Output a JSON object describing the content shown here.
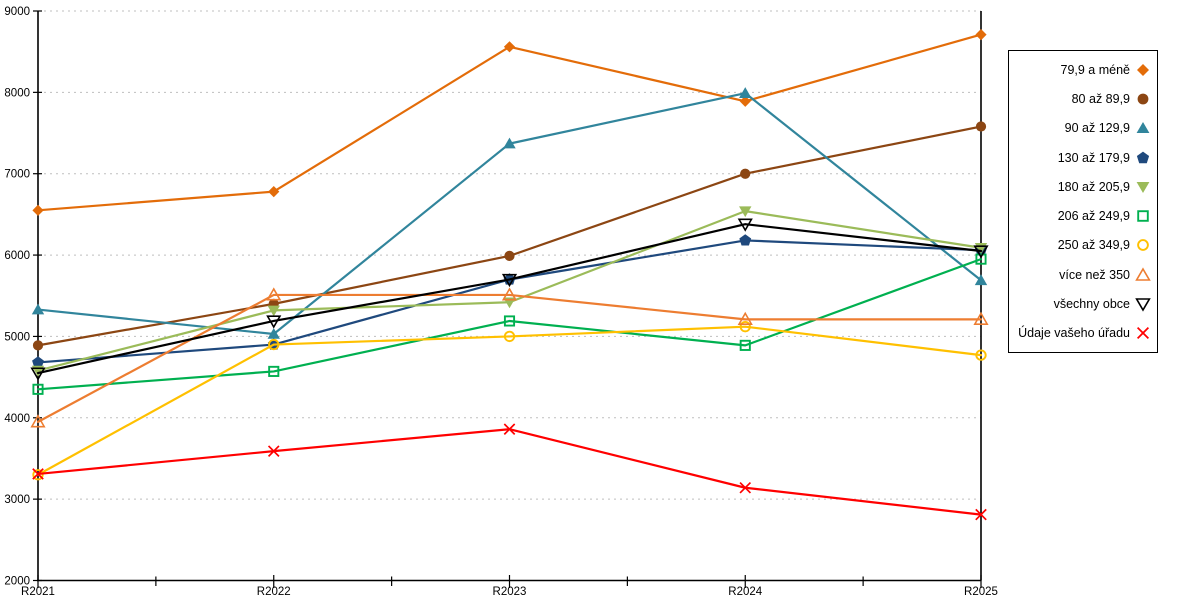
{
  "chart_data": {
    "type": "line",
    "title": "",
    "xlabel": "",
    "ylabel": "",
    "x_labels": [
      "R2021",
      "R2022",
      "R2023",
      "R2024",
      "R2025"
    ],
    "y_tick_labels": [
      "2000",
      "3000",
      "4000",
      "5000",
      "6000",
      "7000",
      "8000",
      "9000"
    ],
    "ylim": [
      2000,
      9000
    ],
    "grid": "horizontal-dashed",
    "gridline_color": "#bfbfbf",
    "axis_color": "#000000",
    "legend_position": "right",
    "series": [
      {
        "name": "79,9 a méně",
        "color": "#E36C09",
        "marker": "diamond",
        "values": [
          6550,
          6780,
          8560,
          7890,
          8710
        ]
      },
      {
        "name": "80 až 89,9",
        "color": "#8C4613",
        "marker": "circle",
        "values": [
          4890,
          5400,
          5990,
          7000,
          7580
        ]
      },
      {
        "name": "90 až 129,9",
        "color": "#31859C",
        "marker": "triangle-up",
        "values": [
          5330,
          5030,
          7370,
          7990,
          5690
        ]
      },
      {
        "name": "130 až 179,9",
        "color": "#1F497D",
        "marker": "pentagon",
        "values": [
          4680,
          4900,
          5700,
          6180,
          6060
        ]
      },
      {
        "name": "180 až 205,9",
        "color": "#9BBB59",
        "marker": "triangle-down",
        "values": [
          4580,
          5320,
          5420,
          6540,
          6090
        ]
      },
      {
        "name": "206 až 249,9",
        "color": "#00B050",
        "marker": "square-open",
        "values": [
          4350,
          4570,
          5190,
          4890,
          5950
        ]
      },
      {
        "name": "250 až 349,9",
        "color": "#FFC000",
        "marker": "circle-open",
        "values": [
          3300,
          4900,
          5000,
          5120,
          4770
        ]
      },
      {
        "name": "více než 350",
        "color": "#ED7D31",
        "marker": "triangle-up-open",
        "values": [
          3950,
          5510,
          5510,
          5210,
          5210
        ]
      },
      {
        "name": "všechny obce",
        "color": "#000000",
        "marker": "triangle-down-open",
        "values": [
          4550,
          5190,
          5700,
          6380,
          6050
        ]
      },
      {
        "name": "Údaje vašeho úřadu",
        "color": "#FF0000",
        "marker": "x",
        "values": [
          3310,
          3590,
          3860,
          3140,
          2810
        ]
      }
    ]
  }
}
